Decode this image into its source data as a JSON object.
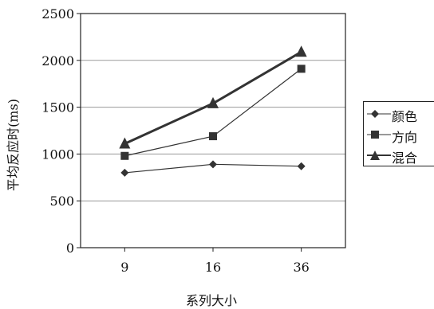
{
  "chart_data": {
    "type": "line",
    "title": "",
    "xlabel": "系列大小",
    "ylabel": "平均反应时(ms)",
    "categories": [
      "9",
      "16",
      "36"
    ],
    "ylim": [
      0,
      2500
    ],
    "yticks": [
      0,
      500,
      1000,
      1500,
      2000,
      2500
    ],
    "grid": true,
    "legend_position": "right",
    "series": [
      {
        "name": "颜色",
        "marker": "diamond",
        "values": [
          800,
          890,
          870
        ]
      },
      {
        "name": "方向",
        "marker": "square",
        "values": [
          980,
          1190,
          1910
        ]
      },
      {
        "name": "混合",
        "marker": "triangle",
        "values": [
          1110,
          1540,
          2090
        ]
      }
    ]
  }
}
